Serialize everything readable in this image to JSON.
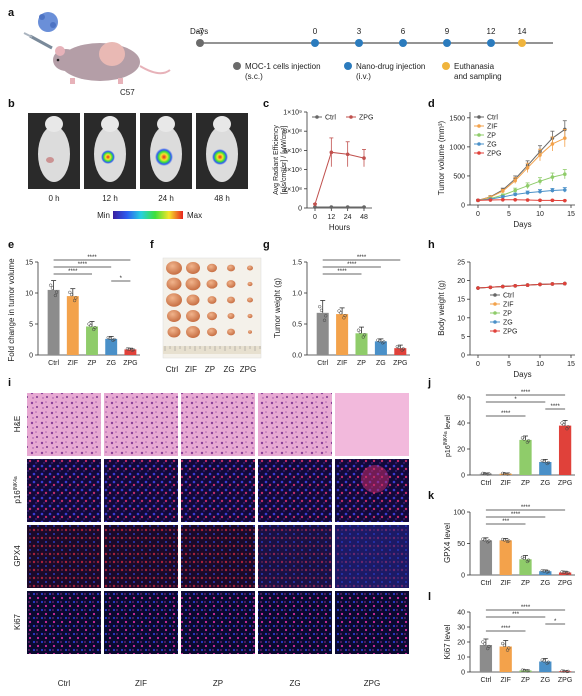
{
  "panel_labels": [
    "a",
    "b",
    "c",
    "d",
    "e",
    "f",
    "g",
    "h",
    "i",
    "j",
    "k",
    "l"
  ],
  "panel_a": {
    "mouse_label": "C57",
    "days_label": "Days",
    "timeline_days": [
      "-7",
      "0",
      "3",
      "6",
      "9",
      "12",
      "14"
    ],
    "legend": [
      {
        "text": "MOC-1 cells injection",
        "sub": "(s.c.)",
        "color": "#6b6b6b"
      },
      {
        "text": "Nano-drug injection",
        "sub": "(i.v.)",
        "color": "#2b7bbd"
      },
      {
        "text": "Euthanasia",
        "sub": "and sampling",
        "color": "#f0b43c"
      }
    ]
  },
  "panel_b": {
    "times": [
      "0 h",
      "12 h",
      "24 h",
      "48 h"
    ],
    "scale_min": "Min",
    "scale_max": "Max"
  },
  "panel_f": {
    "groups": [
      "Ctrl",
      "ZIF",
      "ZP",
      "ZG",
      "ZPG"
    ]
  },
  "panel_i": {
    "rows": [
      "H&E",
      "p16INK4a",
      "GPX4",
      "Ki67"
    ],
    "row_main": [
      "H&E",
      "p16",
      "GPX4",
      "Ki67"
    ],
    "row_sup": [
      "",
      "INK4a",
      "",
      ""
    ],
    "cols": [
      "Ctrl",
      "ZIF",
      "ZP",
      "ZG",
      "ZPG"
    ]
  },
  "colors": {
    "Ctrl": "#8c8c8c",
    "ZIF": "#f3a24b",
    "ZP": "#8fcc6a",
    "ZG": "#4a90c8",
    "ZPG": "#e0413a",
    "ctrl_line": "#666666",
    "zpg_line": "#c0504d"
  },
  "chart_data": [
    {
      "panel": "c",
      "type": "line",
      "ylabel_lines": [
        "Avg Radiant Efficiency",
        "[p/s/cm²/sr] / [μW/cm²]"
      ],
      "xlabel": "Hours",
      "x": [
        0,
        12,
        24,
        48
      ],
      "ylim": [
        0,
        1000000000
      ],
      "yticks": [
        0,
        200000000,
        400000000,
        600000000,
        800000000,
        1000000000
      ],
      "ytick_labels": [
        "0",
        "2×10⁸",
        "4×10⁸",
        "6×10⁸",
        "8×10⁸",
        "1×10⁹"
      ],
      "xticks": [
        "0",
        "12",
        "24",
        "48"
      ],
      "legend": [
        "Ctrl",
        "ZPG"
      ],
      "series": [
        {
          "name": "Ctrl",
          "values": [
            10000000,
            10000000,
            10000000,
            10000000
          ],
          "err": [
            2000000,
            2000000,
            2000000,
            2000000
          ]
        },
        {
          "name": "ZPG",
          "values": [
            40000000,
            580000000,
            560000000,
            520000000
          ],
          "err": [
            5000000,
            150000000,
            130000000,
            90000000
          ]
        }
      ]
    },
    {
      "panel": "d",
      "type": "line",
      "ylabel": "Tumor volume (mm³)",
      "xlabel": "Days",
      "x": [
        0,
        2,
        4,
        6,
        8,
        10,
        12,
        14
      ],
      "ylim": [
        0,
        1600
      ],
      "xlim": [
        0,
        15
      ],
      "yticks": [
        0,
        500,
        1000,
        1500
      ],
      "xticks": [
        0,
        5,
        10,
        15
      ],
      "legend": [
        "Ctrl",
        "ZIF",
        "ZP",
        "ZG",
        "ZPG"
      ],
      "series": [
        {
          "name": "Ctrl",
          "values": [
            80,
            140,
            260,
            450,
            680,
            920,
            1150,
            1300
          ],
          "err": [
            10,
            20,
            30,
            50,
            80,
            100,
            120,
            150
          ]
        },
        {
          "name": "ZIF",
          "values": [
            80,
            135,
            240,
            420,
            640,
            860,
            1050,
            1150
          ],
          "err": [
            10,
            20,
            30,
            50,
            80,
            100,
            120,
            150
          ]
        },
        {
          "name": "ZP",
          "values": [
            80,
            110,
            170,
            250,
            330,
            410,
            480,
            530
          ],
          "err": [
            10,
            15,
            20,
            40,
            50,
            60,
            70,
            80
          ]
        },
        {
          "name": "ZG",
          "values": [
            80,
            100,
            140,
            180,
            210,
            230,
            250,
            260
          ],
          "err": [
            10,
            15,
            20,
            25,
            30,
            35,
            35,
            40
          ]
        },
        {
          "name": "ZPG",
          "values": [
            80,
            85,
            90,
            90,
            85,
            80,
            80,
            75
          ],
          "err": [
            5,
            5,
            8,
            8,
            8,
            8,
            8,
            8
          ]
        }
      ]
    },
    {
      "panel": "e",
      "type": "bar",
      "ylabel": "Fold change in tumor volume",
      "categories": [
        "Ctrl",
        "ZIF",
        "ZP",
        "ZG",
        "ZPG"
      ],
      "values": [
        10.5,
        9.5,
        4.6,
        2.6,
        0.9
      ],
      "err": [
        1.5,
        1.2,
        0.8,
        0.4,
        0.2
      ],
      "ylim": [
        0,
        15
      ],
      "yticks": [
        0,
        5,
        10,
        15
      ],
      "significance": [
        {
          "a": 0,
          "b": 4,
          "label": "****"
        },
        {
          "a": 0,
          "b": 3,
          "label": "****"
        },
        {
          "a": 0,
          "b": 2,
          "label": "****"
        },
        {
          "a": 3,
          "b": 4,
          "label": "*"
        }
      ]
    },
    {
      "panel": "g",
      "type": "bar",
      "ylabel": "Tumor weight (g)",
      "categories": [
        "Ctrl",
        "ZIF",
        "ZP",
        "ZG",
        "ZPG"
      ],
      "values": [
        0.68,
        0.66,
        0.35,
        0.22,
        0.11
      ],
      "err": [
        0.2,
        0.1,
        0.1,
        0.04,
        0.05
      ],
      "ylim": [
        0,
        1.5
      ],
      "yticks": [
        0,
        0.5,
        1.0,
        1.5
      ],
      "ytick_labels": [
        "0.0",
        "0.5",
        "1.0",
        "1.5"
      ],
      "significance": [
        {
          "a": 0,
          "b": 4,
          "label": "****"
        },
        {
          "a": 0,
          "b": 3,
          "label": "****"
        },
        {
          "a": 0,
          "b": 2,
          "label": "****"
        }
      ]
    },
    {
      "panel": "h",
      "type": "line",
      "ylabel": "Body weight (g)",
      "xlabel": "Days",
      "x": [
        0,
        2,
        4,
        6,
        8,
        10,
        12,
        14
      ],
      "ylim": [
        0,
        25
      ],
      "xlim": [
        0,
        15
      ],
      "yticks": [
        0,
        5,
        10,
        15,
        20,
        25
      ],
      "xticks": [
        0,
        5,
        10,
        15
      ],
      "legend": [
        "Ctrl",
        "ZIF",
        "ZP",
        "ZG",
        "ZPG"
      ],
      "series": [
        {
          "name": "Ctrl",
          "values": [
            18,
            18.2,
            18.4,
            18.6,
            18.8,
            19.0,
            19.1,
            19.2
          ]
        },
        {
          "name": "ZIF",
          "values": [
            18,
            18.2,
            18.4,
            18.6,
            18.8,
            19.0,
            19.1,
            19.2
          ]
        },
        {
          "name": "ZP",
          "values": [
            18,
            18.2,
            18.4,
            18.6,
            18.8,
            19.0,
            19.1,
            19.2
          ]
        },
        {
          "name": "ZG",
          "values": [
            18,
            18.2,
            18.4,
            18.6,
            18.8,
            19.0,
            19.1,
            19.2
          ]
        },
        {
          "name": "ZPG",
          "values": [
            18,
            18.2,
            18.4,
            18.6,
            18.8,
            19.0,
            19.1,
            19.2
          ]
        }
      ]
    },
    {
      "panel": "j",
      "type": "bar",
      "ylabel_main": "p16",
      "ylabel_sup": "INK4a",
      "ylabel_tail": " level",
      "categories": [
        "Ctrl",
        "ZIF",
        "ZP",
        "ZG",
        "ZPG"
      ],
      "values": [
        1,
        1,
        27,
        10,
        38
      ],
      "err": [
        0.5,
        0.5,
        3,
        2,
        4
      ],
      "ylim": [
        0,
        60
      ],
      "yticks": [
        0,
        20,
        40,
        60
      ],
      "significance": [
        {
          "a": 0,
          "b": 4,
          "label": "****"
        },
        {
          "a": 0,
          "b": 3,
          "label": "*"
        },
        {
          "a": 3,
          "b": 4,
          "label": "****"
        },
        {
          "a": 0,
          "b": 2,
          "label": "****"
        }
      ]
    },
    {
      "panel": "k",
      "type": "bar",
      "ylabel": "GPX4 level",
      "categories": [
        "Ctrl",
        "ZIF",
        "ZP",
        "ZG",
        "ZPG"
      ],
      "values": [
        55,
        55,
        25,
        6,
        4
      ],
      "err": [
        4,
        3,
        6,
        2,
        2
      ],
      "ylim": [
        0,
        100
      ],
      "yticks": [
        0,
        50,
        100
      ],
      "significance": [
        {
          "a": 0,
          "b": 4,
          "label": "****"
        },
        {
          "a": 0,
          "b": 3,
          "label": "****"
        },
        {
          "a": 0,
          "b": 2,
          "label": "***"
        }
      ]
    },
    {
      "panel": "l",
      "type": "bar",
      "ylabel": "Ki67 level",
      "categories": [
        "Ctrl",
        "ZIF",
        "ZP",
        "ZG",
        "ZPG"
      ],
      "values": [
        18,
        17,
        1,
        7,
        0.5
      ],
      "err": [
        4,
        4,
        0.5,
        2,
        0.3
      ],
      "ylim": [
        0,
        40
      ],
      "yticks": [
        0,
        10,
        20,
        30,
        40
      ],
      "significance": [
        {
          "a": 0,
          "b": 4,
          "label": "****"
        },
        {
          "a": 0,
          "b": 3,
          "label": "***"
        },
        {
          "a": 3,
          "b": 4,
          "label": "*"
        },
        {
          "a": 0,
          "b": 2,
          "label": "****"
        }
      ]
    }
  ]
}
